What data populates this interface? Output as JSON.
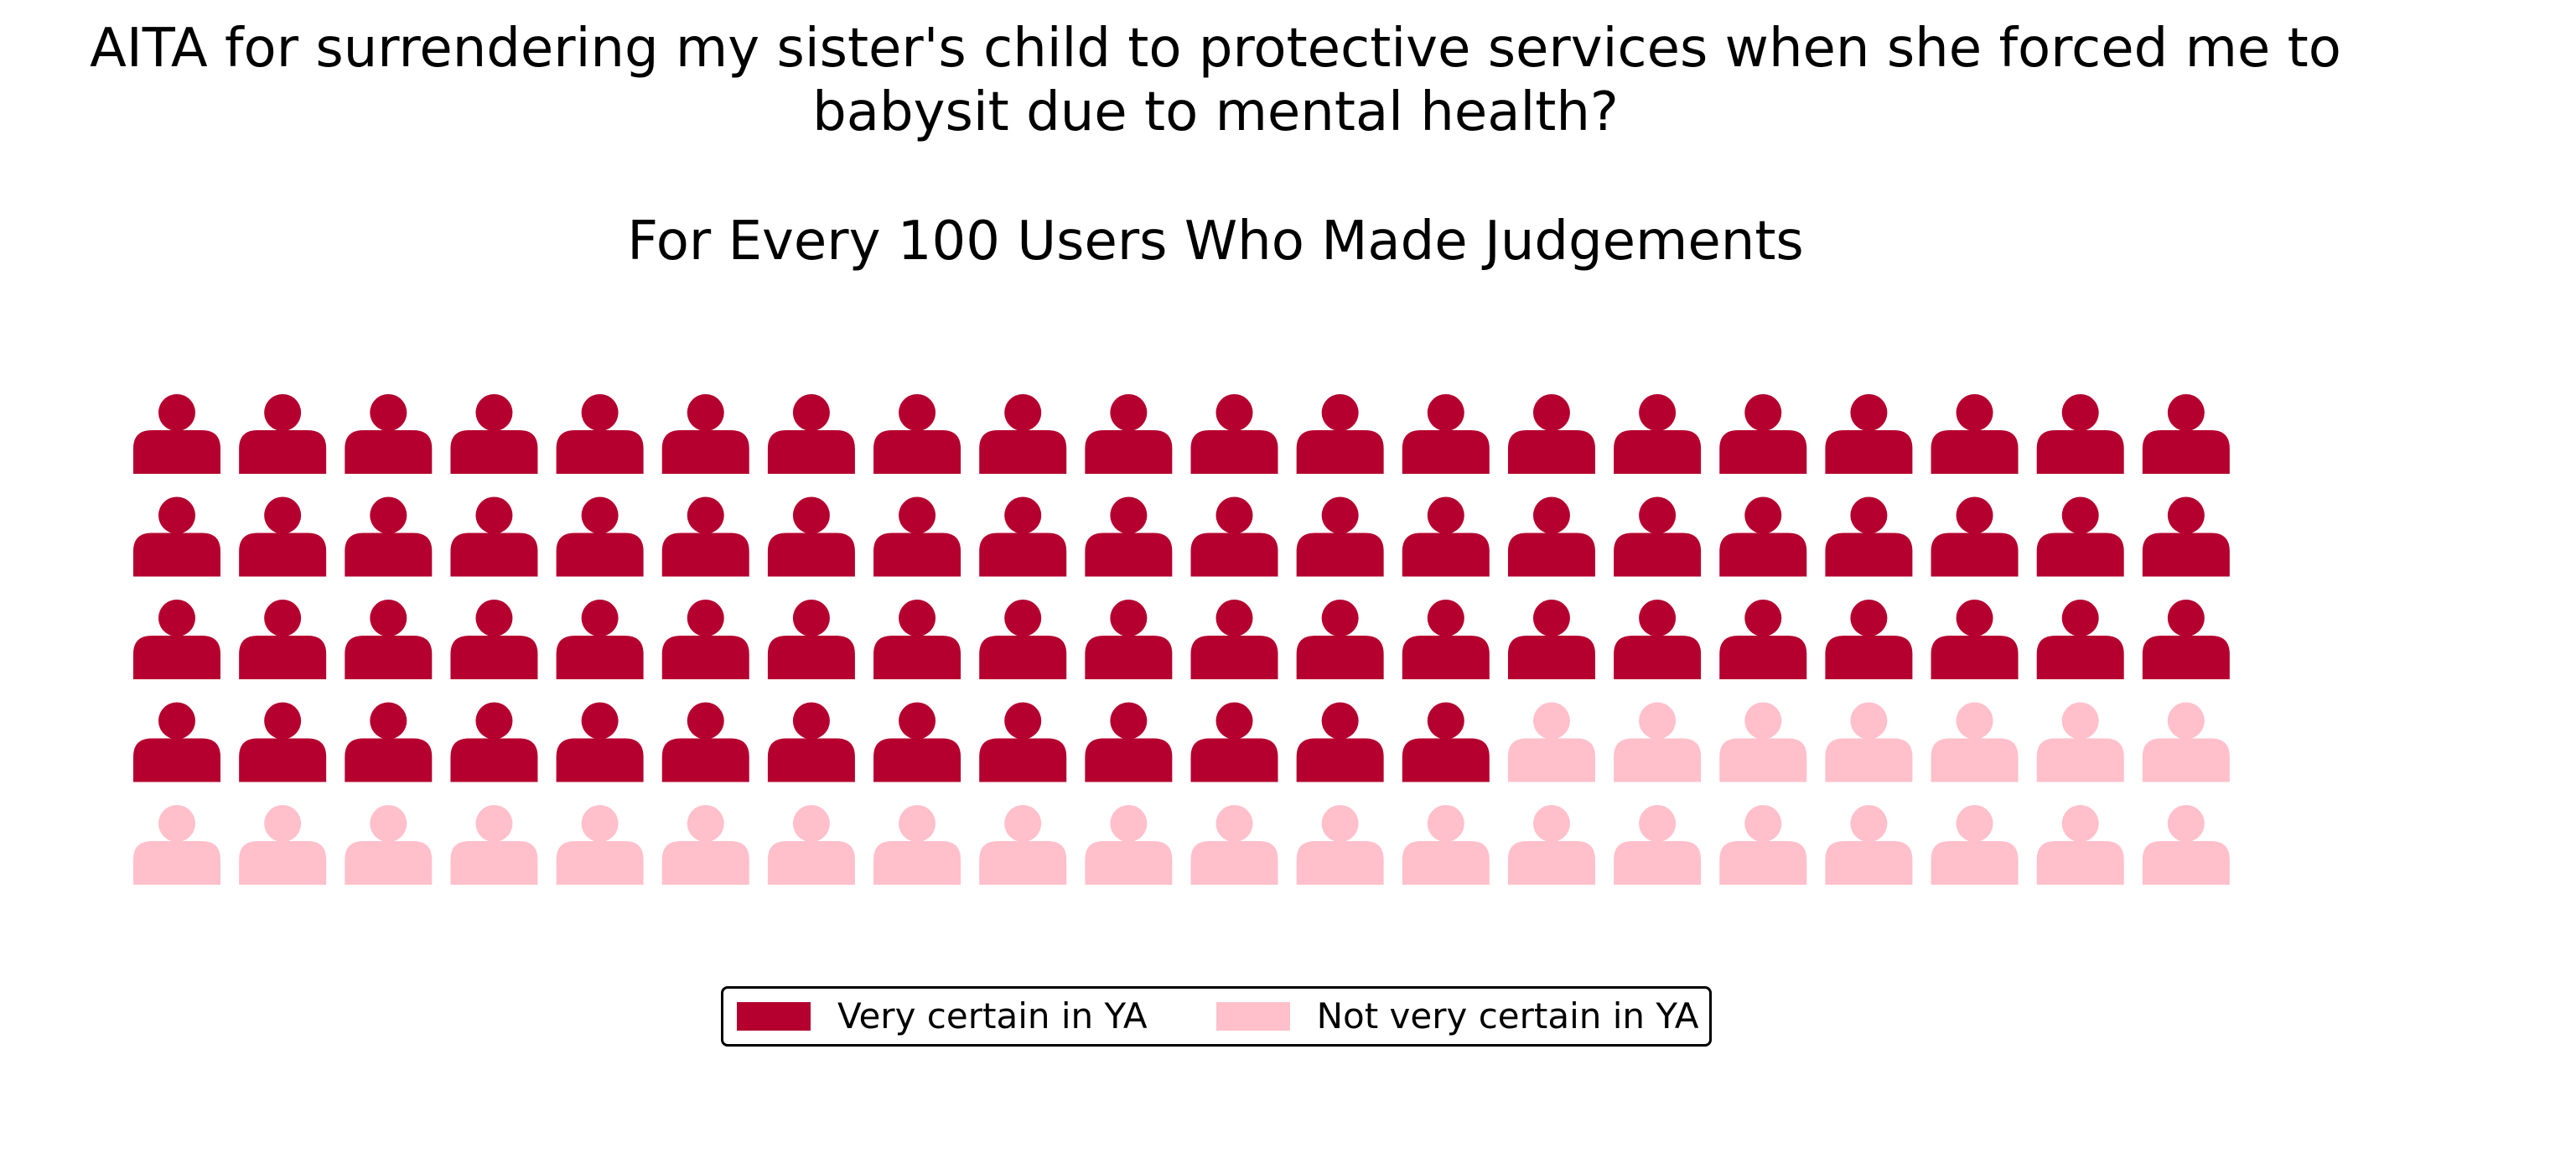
{
  "chart_data": {
    "type": "waffle",
    "title_lines": [
      "AITA for surrendering my sister's child to protective services when she forced me to",
      "babysit due to mental health?"
    ],
    "subtitle": "For Every 100 Users Who Made Judgements",
    "rows": 5,
    "columns": 20,
    "series": [
      {
        "name": "Very certain in YA",
        "value": 73,
        "color": "#b5002f"
      },
      {
        "name": "Not very certain in YA",
        "value": 27,
        "color": "#ffc0cb"
      }
    ],
    "icon": "person-icon",
    "legend_position": "bottom-center"
  }
}
